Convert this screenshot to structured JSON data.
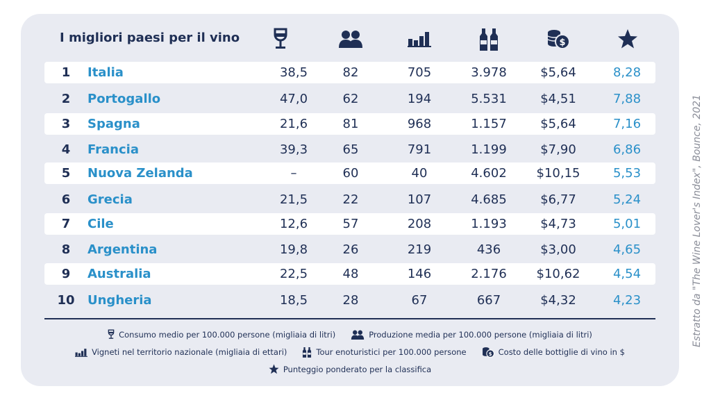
{
  "table": {
    "title": "I migliori paesi per il vino",
    "icons": [
      "wine-glass-icon",
      "people-icon",
      "bar-chart-icon",
      "bottles-icon",
      "coins-icon",
      "star-icon"
    ],
    "rows": [
      {
        "rank": "1",
        "country": "Italia",
        "consumo": "38,5",
        "produzione": "82",
        "vigneti": "705",
        "tour": "3.978",
        "costo": "$5,64",
        "punteggio": "8,28"
      },
      {
        "rank": "2",
        "country": "Portogallo",
        "consumo": "47,0",
        "produzione": "62",
        "vigneti": "194",
        "tour": "5.531",
        "costo": "$4,51",
        "punteggio": "7,88"
      },
      {
        "rank": "3",
        "country": "Spagna",
        "consumo": "21,6",
        "produzione": "81",
        "vigneti": "968",
        "tour": "1.157",
        "costo": "$5,64",
        "punteggio": "7,16"
      },
      {
        "rank": "4",
        "country": "Francia",
        "consumo": "39,3",
        "produzione": "65",
        "vigneti": "791",
        "tour": "1.199",
        "costo": "$7,90",
        "punteggio": "6,86"
      },
      {
        "rank": "5",
        "country": "Nuova Zelanda",
        "consumo": "–",
        "produzione": "60",
        "vigneti": "40",
        "tour": "4.602",
        "costo": "$10,15",
        "punteggio": "5,53"
      },
      {
        "rank": "6",
        "country": "Grecia",
        "consumo": "21,5",
        "produzione": "22",
        "vigneti": "107",
        "tour": "4.685",
        "costo": "$6,77",
        "punteggio": "5,24"
      },
      {
        "rank": "7",
        "country": "Cile",
        "consumo": "12,6",
        "produzione": "57",
        "vigneti": "208",
        "tour": "1.193",
        "costo": "$4,73",
        "punteggio": "5,01"
      },
      {
        "rank": "8",
        "country": "Argentina",
        "consumo": "19,8",
        "produzione": "26",
        "vigneti": "219",
        "tour": "436",
        "costo": "$3,00",
        "punteggio": "4,65"
      },
      {
        "rank": "9",
        "country": "Australia",
        "consumo": "22,5",
        "produzione": "48",
        "vigneti": "146",
        "tour": "2.176",
        "costo": "$10,62",
        "punteggio": "4,54"
      },
      {
        "rank": "10",
        "country": "Ungheria",
        "consumo": "18,5",
        "produzione": "28",
        "vigneti": "67",
        "tour": "667",
        "costo": "$4,32",
        "punteggio": "4,23"
      }
    ]
  },
  "legend": {
    "consumo": "Consumo medio per 100.000 persone (migliaia di litri)",
    "produzione": "Produzione media per 100.000 persone (migliaia di litri)",
    "vigneti": "Vigneti nel territorio nazionale (migliaia di ettari)",
    "tour": "Tour enoturistici per 100.000 persone",
    "costo": "Costo delle bottiglie di vino in $",
    "punteggio": "Punteggio ponderato per la classifica"
  },
  "source": "Estratto da \"The Wine Lover's Index\", Bounce, 2021",
  "colors": {
    "navy": "#1f2f55",
    "accent": "#2a90c9",
    "card": "#e9ebf2"
  }
}
